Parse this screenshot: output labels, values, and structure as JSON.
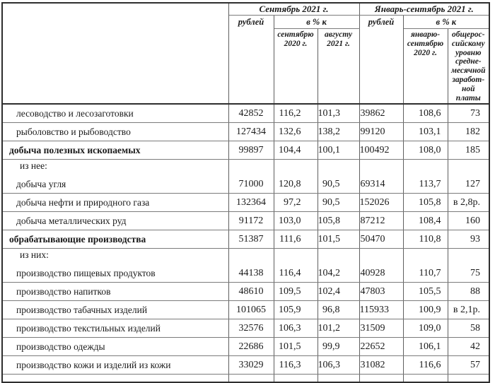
{
  "document": {
    "colors": {
      "border_dark": "#2e2e2e",
      "border_light": "#7b7b7b",
      "text": "#1a1a1a",
      "background": "#ffffff"
    },
    "table": {
      "header": {
        "group_september": "Сентябрь 2021 г.",
        "group_jan_september": "Январь-сентябрь 2021 г.",
        "rubles_label": "рублей",
        "percent_label": "в % к",
        "col_september_2020": "сентябрю\n2020 г.",
        "col_august_2021": "августу\n2021 г.",
        "col_january_september_2020": "январю-\nсентябрю\n2020 г.",
        "col_national_avg_wage": "общерос-\nсийскому\nуровню\nсредне-\nмесячной\nзаработ-\nной\nплаты"
      },
      "rows": [
        {
          "label": "лесоводство и лесозаготовки",
          "style": "item",
          "values": [
            "42852",
            "116,2",
            "101,3",
            "39862",
            "108,6",
            "73"
          ]
        },
        {
          "label": "рыболовство и рыбоводство",
          "style": "item",
          "values": [
            "127434",
            "132,6",
            "138,2",
            "99120",
            "103,1",
            "182"
          ]
        },
        {
          "label": "добыча полезных ископаемых",
          "style": "section",
          "values": [
            "99897",
            "104,4",
            "100,1",
            "100492",
            "108,0",
            "185"
          ]
        },
        {
          "label": "из нее:",
          "style": "note",
          "values": []
        },
        {
          "label": "добыча угля",
          "style": "item",
          "values": [
            "71000",
            "120,8",
            "90,5",
            "69314",
            "113,7",
            "127"
          ]
        },
        {
          "label": "добыча нефти и природного газа",
          "style": "item",
          "values": [
            "132364",
            "97,2",
            "90,5",
            "152026",
            "105,8",
            "в 2,8р."
          ]
        },
        {
          "label": "добыча металлических руд",
          "style": "item",
          "values": [
            "91172",
            "103,0",
            "105,8",
            "87212",
            "108,4",
            "160"
          ]
        },
        {
          "label": "обрабатывающие производства",
          "style": "section",
          "values": [
            "51387",
            "111,6",
            "101,5",
            "50470",
            "110,8",
            "93"
          ]
        },
        {
          "label": "из них:",
          "style": "note",
          "values": []
        },
        {
          "label": "производство пищевых продуктов",
          "style": "item",
          "values": [
            "44138",
            "116,4",
            "104,2",
            "40928",
            "110,7",
            "75"
          ]
        },
        {
          "label": "производство напитков",
          "style": "item",
          "values": [
            "48610",
            "109,5",
            "102,4",
            "47803",
            "105,5",
            "88"
          ]
        },
        {
          "label": "производство табачных изделий",
          "style": "item",
          "values": [
            "101065",
            "105,9",
            "96,8",
            "115933",
            "100,9",
            "в 2,1р."
          ]
        },
        {
          "label": "производство текстильных изделий",
          "style": "item",
          "values": [
            "32576",
            "106,3",
            "101,2",
            "31509",
            "109,0",
            "58"
          ]
        },
        {
          "label": "производство одежды",
          "style": "item",
          "values": [
            "22686",
            "101,5",
            "99,9",
            "22652",
            "106,1",
            "42"
          ]
        },
        {
          "label": "производство кожи и изделий из кожи",
          "style": "item",
          "values": [
            "33029",
            "116,3",
            "106,3",
            "31082",
            "116,6",
            "57"
          ]
        }
      ]
    }
  }
}
